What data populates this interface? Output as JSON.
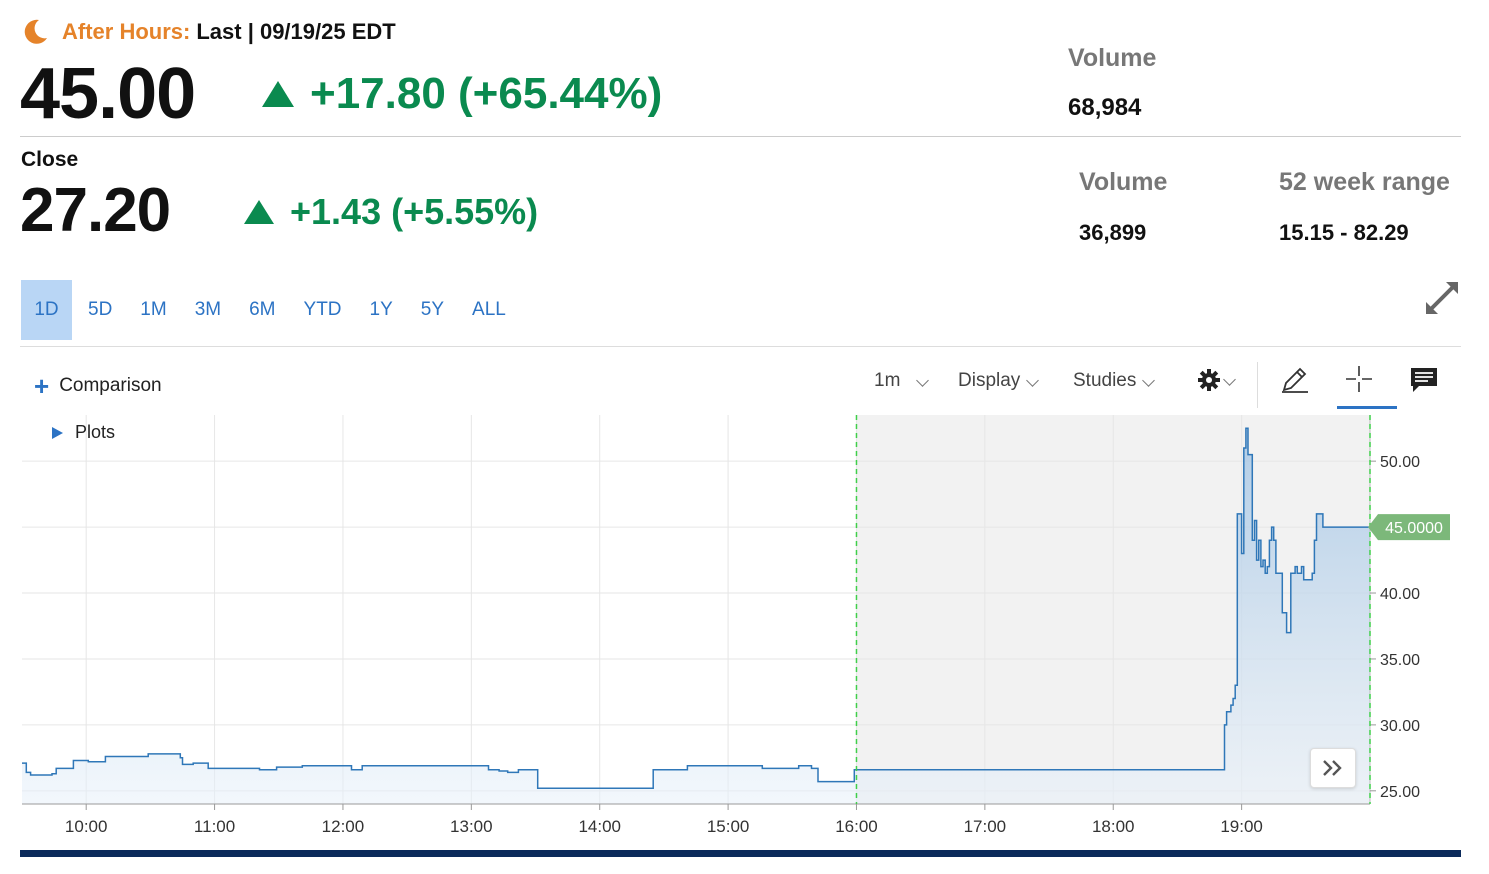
{
  "after_hours": {
    "label": "After Hours:",
    "last": "Last | 09/19/25 EDT",
    "price": "45.00",
    "change": "+17.80 (+65.44%)",
    "volume_label": "Volume",
    "volume_value": "68,984"
  },
  "close": {
    "label": "Close",
    "price": "27.20",
    "change": "+1.43 (+5.55%)",
    "volume_label": "Volume",
    "volume_value": "36,899",
    "range_label": "52 week range",
    "range_value": "15.15 - 82.29"
  },
  "range_tabs": [
    "1D",
    "5D",
    "1M",
    "3M",
    "6M",
    "YTD",
    "1Y",
    "5Y",
    "ALL"
  ],
  "active_range": "1D",
  "toolbar": {
    "comparison": "Comparison",
    "interval": "1m",
    "display": "Display",
    "studies": "Studies",
    "plots": "Plots"
  },
  "colors": {
    "up": "#0a8a4f",
    "accent": "#2c73c4",
    "after_hours": "#e5832a",
    "line": "#2f77b8",
    "price_tag": "#7cb87a"
  },
  "chart_data": {
    "type": "area",
    "x_ticks": [
      "10:00",
      "11:00",
      "12:00",
      "13:00",
      "14:00",
      "15:00",
      "16:00",
      "17:00",
      "18:00",
      "19:00"
    ],
    "y_ticks": [
      "25.00",
      "30.00",
      "35.00",
      "40.00",
      "45.00",
      "50.00"
    ],
    "ylim": [
      24,
      53.5
    ],
    "xlim": [
      "09:30",
      "20:00"
    ],
    "extended_hours_start": "16:00",
    "current_label": "45.0000",
    "current_value": 45.0,
    "x": [
      "09:30",
      "09:32",
      "09:34",
      "09:44",
      "09:46",
      "09:54",
      "10:01",
      "10:09",
      "10:29",
      "10:44",
      "10:45",
      "10:50",
      "10:53",
      "10:57",
      "11:09",
      "11:21",
      "11:29",
      "11:41",
      "12:00",
      "12:04",
      "12:09",
      "12:29",
      "12:41",
      "12:44",
      "13:08",
      "13:11",
      "13:13",
      "13:17",
      "13:22",
      "13:24",
      "13:31",
      "13:38",
      "13:42",
      "14:14",
      "14:25",
      "14:27",
      "14:41",
      "14:49",
      "14:59",
      "15:16",
      "15:29",
      "15:33",
      "15:39",
      "15:42",
      "15:56",
      "15:59",
      "16:02",
      "16:45",
      "17:30",
      "18:15",
      "18:51",
      "18:52",
      "18:53",
      "18:55",
      "18:56",
      "18:57",
      "18:58",
      "19:00",
      "19:01",
      "19:02",
      "19:03",
      "19:05",
      "19:06",
      "19:07",
      "19:08",
      "19:09",
      "19:10",
      "19:11",
      "19:12",
      "19:13",
      "19:14",
      "19:15",
      "19:16",
      "19:18",
      "19:19",
      "19:21",
      "19:22",
      "19:23",
      "19:25",
      "19:26",
      "19:28",
      "19:29",
      "19:31",
      "19:33",
      "19:34",
      "19:35",
      "19:38",
      "19:41",
      "19:46",
      "19:52",
      "19:58",
      "20:00"
    ],
    "y": [
      27.1,
      26.4,
      26.2,
      26.3,
      26.7,
      27.3,
      27.2,
      27.6,
      27.8,
      27.5,
      27.0,
      27.1,
      27.1,
      26.7,
      26.7,
      26.6,
      26.8,
      26.9,
      26.9,
      26.6,
      26.9,
      26.9,
      26.9,
      26.9,
      26.6,
      26.6,
      26.5,
      26.4,
      26.6,
      26.6,
      25.2,
      25.2,
      25.2,
      25.2,
      26.6,
      26.6,
      26.9,
      26.9,
      26.9,
      26.7,
      26.7,
      26.9,
      26.7,
      25.7,
      25.7,
      26.6,
      26.6,
      26.6,
      26.6,
      26.6,
      26.6,
      30.0,
      31.0,
      31.5,
      32.0,
      33.0,
      46.0,
      43.0,
      51.0,
      52.5,
      50.5,
      44.0,
      45.5,
      42.5,
      44.0,
      42.0,
      42.5,
      41.5,
      42.0,
      44.0,
      45.0,
      44.0,
      41.5,
      41.5,
      38.5,
      37.0,
      37.0,
      41.5,
      42.0,
      41.5,
      42.0,
      41.0,
      41.0,
      41.5,
      44.0,
      46.0,
      45.0,
      45.0,
      45.0,
      45.0,
      45.0,
      45.0
    ]
  }
}
